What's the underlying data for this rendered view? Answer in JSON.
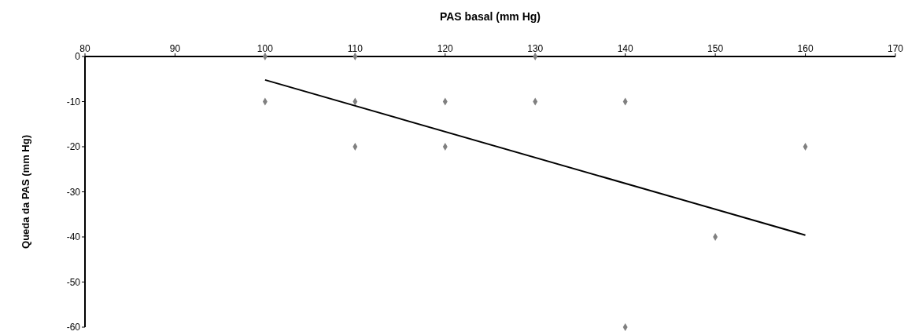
{
  "chart_data": {
    "type": "scatter",
    "xlabel": "PAS basal (mm Hg)",
    "ylabel": "Queda da PAS (mm Hg)",
    "xlim": [
      80,
      170
    ],
    "xticks": [
      80,
      90,
      100,
      110,
      120,
      130,
      140,
      150,
      160,
      170
    ],
    "ylim": [
      -60,
      0
    ],
    "yticks": [
      -60,
      -50,
      -40,
      -30,
      -20,
      -10,
      0
    ],
    "grid": false,
    "marker": "diamond",
    "series": [
      {
        "type": "scatter",
        "color": "#808080",
        "x": [
          100,
          110,
          130,
          100,
          110,
          120,
          130,
          140,
          110,
          120,
          160,
          150,
          140
        ],
        "values": [
          0,
          0,
          0,
          -10,
          -10,
          -10,
          -10,
          -10,
          -20,
          -20,
          -20,
          -40,
          -60
        ]
      },
      {
        "type": "line",
        "color": "#000000",
        "marker": "none",
        "line_style": "solid",
        "x": [
          100,
          160
        ],
        "values": [
          -5.2,
          -39.6
        ]
      }
    ]
  }
}
